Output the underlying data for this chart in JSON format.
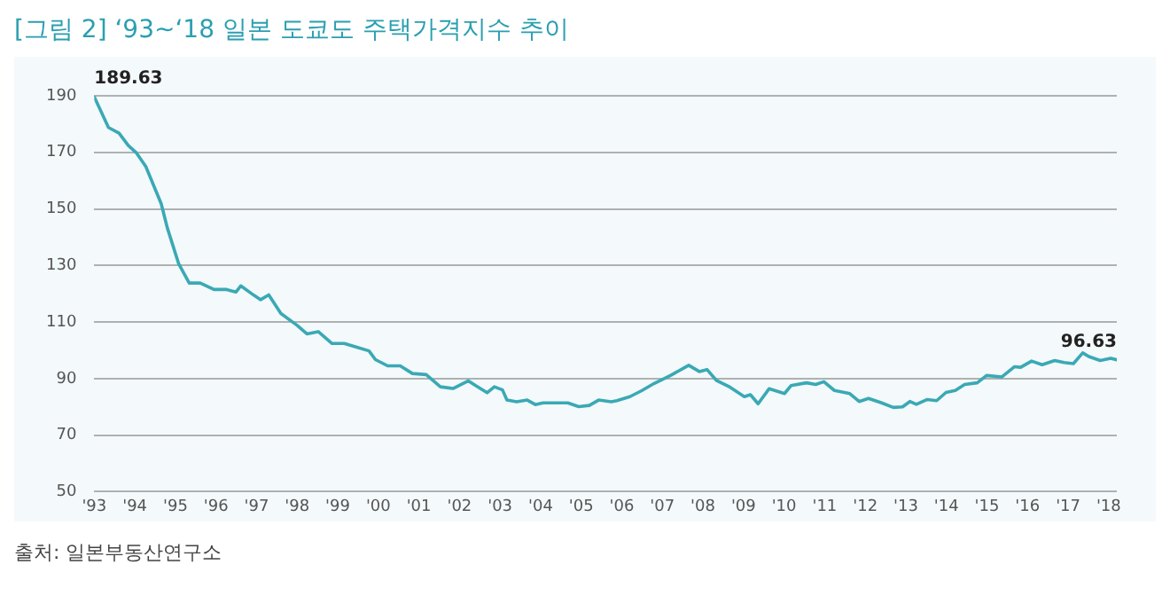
{
  "chart_data": {
    "type": "line",
    "title": "[그림 2]  ‘93~‘18 일본 도쿄도 주택가격지수 추이",
    "x": [
      1993.0,
      1993.35,
      1993.61,
      1993.84,
      1994.04,
      1994.27,
      1994.65,
      1994.8,
      1995.08,
      1995.34,
      1995.61,
      1995.95,
      1996.26,
      1996.49,
      1996.61,
      1996.94,
      1997.1,
      1997.3,
      1997.6,
      1998.0,
      1998.24,
      1998.52,
      1998.86,
      1999.16,
      1999.47,
      1999.77,
      1999.93,
      2000.23,
      2000.54,
      2000.84,
      2001.18,
      2001.53,
      2001.84,
      2002.22,
      2002.4,
      2002.68,
      2002.86,
      2003.06,
      2003.17,
      2003.41,
      2003.67,
      2003.87,
      2004.06,
      2004.36,
      2004.67,
      2004.94,
      2005.2,
      2005.43,
      2005.74,
      2005.88,
      2006.2,
      2006.5,
      2006.8,
      2007.2,
      2007.65,
      2007.91,
      2008.1,
      2008.33,
      2008.64,
      2009.02,
      2009.17,
      2009.36,
      2009.63,
      2010.01,
      2010.17,
      2010.55,
      2010.78,
      2010.98,
      2011.24,
      2011.62,
      2011.85,
      2012.08,
      2012.39,
      2012.69,
      2012.92,
      2013.1,
      2013.26,
      2013.53,
      2013.76,
      2013.99,
      2014.22,
      2014.45,
      2014.76,
      2014.99,
      2015.37,
      2015.68,
      2015.83,
      2016.1,
      2016.36,
      2016.67,
      2016.9,
      2017.13,
      2017.36,
      2017.51,
      2017.79,
      2018.05,
      2018.2
    ],
    "series": [
      {
        "color": "#3aa9b4",
        "values": [
          189.63,
          178.8,
          176.8,
          172.4,
          169.8,
          165,
          151.8,
          143.3,
          130.6,
          123.8,
          123.8,
          121.5,
          121.5,
          120.6,
          122.8,
          119.4,
          117.9,
          119.6,
          113,
          108.8,
          105.8,
          106.6,
          102.4,
          102.4,
          101.1,
          99.8,
          96.7,
          94.5,
          94.5,
          91.8,
          91.4,
          87.1,
          86.5,
          89.2,
          87.5,
          85,
          87.1,
          86,
          82.4,
          81.8,
          82.4,
          80.8,
          81.4,
          81.4,
          81.4,
          80.1,
          80.5,
          82.4,
          81.8,
          82.2,
          83.6,
          85.8,
          88.3,
          91.1,
          94.7,
          92.5,
          93.2,
          89.4,
          87.2,
          83.6,
          84.3,
          81.1,
          86.4,
          84.7,
          87.5,
          88.5,
          87.9,
          88.9,
          85.8,
          84.7,
          81.9,
          83,
          81.5,
          79.8,
          80,
          81.9,
          80.9,
          82.6,
          82.2,
          85.1,
          85.8,
          87.9,
          88.5,
          91.1,
          90.6,
          94.2,
          94,
          96.2,
          94.9,
          96.4,
          95.7,
          95.3,
          99.1,
          97.8,
          96.4,
          97.2,
          96.63
        ]
      }
    ],
    "xlim": [
      1993,
      2018.2
    ],
    "xticks": [
      {
        "value": 1993,
        "label": "'93"
      },
      {
        "value": 1994,
        "label": "'94"
      },
      {
        "value": 1995,
        "label": "'95"
      },
      {
        "value": 1996,
        "label": "'96"
      },
      {
        "value": 1997,
        "label": "'97"
      },
      {
        "value": 1998,
        "label": "'98"
      },
      {
        "value": 1999,
        "label": "'99"
      },
      {
        "value": 2000,
        "label": "'00"
      },
      {
        "value": 2001,
        "label": "'01"
      },
      {
        "value": 2002,
        "label": "'02"
      },
      {
        "value": 2003,
        "label": "'03"
      },
      {
        "value": 2004,
        "label": "'04"
      },
      {
        "value": 2005,
        "label": "'05"
      },
      {
        "value": 2006,
        "label": "'06"
      },
      {
        "value": 2007,
        "label": "'07"
      },
      {
        "value": 2008,
        "label": "'08"
      },
      {
        "value": 2009,
        "label": "'09"
      },
      {
        "value": 2010,
        "label": "'10"
      },
      {
        "value": 2011,
        "label": "'11"
      },
      {
        "value": 2012,
        "label": "'12"
      },
      {
        "value": 2013,
        "label": "'13"
      },
      {
        "value": 2014,
        "label": "'14"
      },
      {
        "value": 2015,
        "label": "'15"
      },
      {
        "value": 2016,
        "label": "'16"
      },
      {
        "value": 2017,
        "label": "'17"
      },
      {
        "value": 2018,
        "label": "'18"
      }
    ],
    "ylim": [
      50,
      190
    ],
    "yticks": [
      50,
      70,
      90,
      110,
      130,
      150,
      170,
      190
    ],
    "grid": "y",
    "legend": false,
    "marker": "none",
    "line_style": "solid",
    "annotations": [
      {
        "text": "189.63",
        "x": 1993.0,
        "y": 189.63
      },
      {
        "text": "96.63",
        "x": 2018.2,
        "y": 96.63
      },
      "출처: 일본부동산연구소"
    ]
  }
}
